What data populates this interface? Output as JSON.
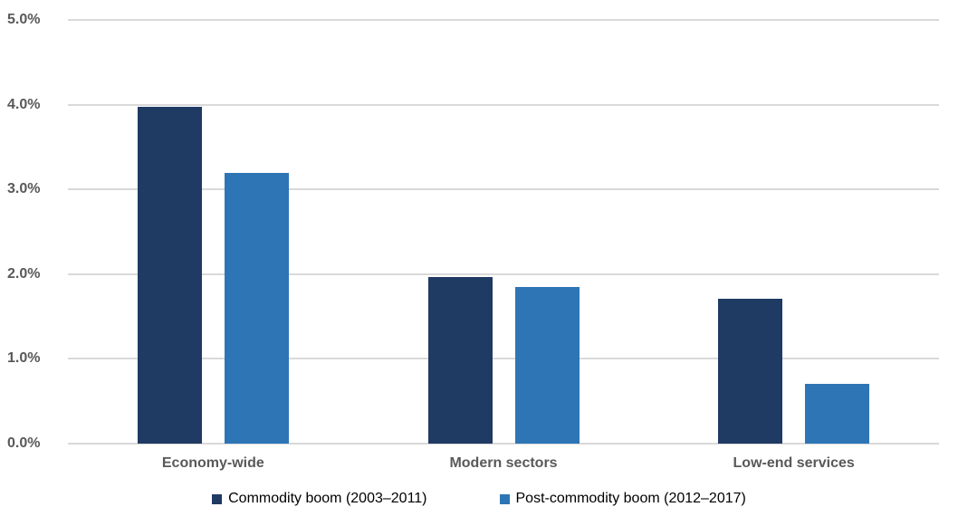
{
  "chart_data": {
    "type": "bar",
    "title": "",
    "categories": [
      "Economy-wide",
      "Modern sectors",
      "Low-end services"
    ],
    "series": [
      {
        "name": "Commodity boom (2003–2011)",
        "color": "#1F3A63",
        "values": [
          3.97,
          1.97,
          1.71
        ]
      },
      {
        "name": "Post-commodity boom (2012–2017)",
        "color": "#2E75B6",
        "values": [
          3.19,
          1.85,
          0.7
        ]
      }
    ],
    "xlabel": "",
    "ylabel": "",
    "ylim": [
      0,
      5
    ],
    "ytick_labels": [
      "0.0%",
      "1.0%",
      "2.0%",
      "3.0%",
      "4.0%",
      "5.0%"
    ],
    "grid": true,
    "legend_position": "bottom",
    "colors": {
      "gridline": "#D9D9D9",
      "axis_text": "#595959",
      "legend_text": "#000000",
      "background": "#FFFFFF"
    }
  }
}
